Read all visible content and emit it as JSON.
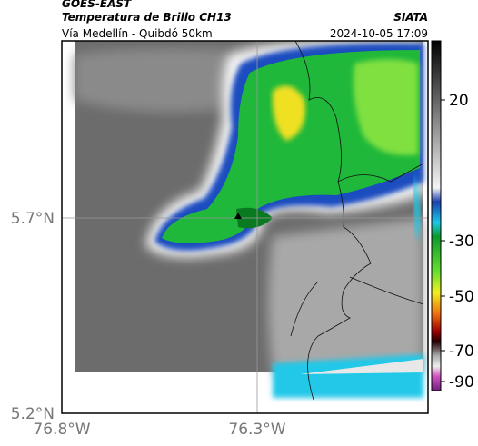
{
  "header": {
    "title": "GOES-EAST",
    "subtitle": "Temperatura de Brillo CH13",
    "org": "SIATA",
    "route": "Vía Medellín - Quibdó 50km",
    "timestamp": "2024-10-05 17:09"
  },
  "map": {
    "lat_labels": [
      "5.7°N",
      "5.2°N"
    ],
    "lon_labels": [
      "76.8°W",
      "76.3°W"
    ]
  },
  "colorbar": {
    "ticks": [
      "20",
      "-30",
      "-50",
      "-70",
      "-90"
    ]
  }
}
